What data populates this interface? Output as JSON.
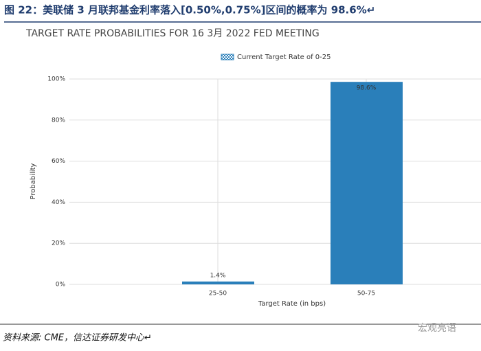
{
  "header": {
    "title": "图 22：美联储 3 月联邦基金利率落入[0.50%,0.75%]区间的概率为 98.6%↵"
  },
  "chart_data": {
    "type": "bar",
    "title": "TARGET RATE PROBABILITIES FOR 16 3月 2022 FED MEETING",
    "legend": "Current Target Rate of 0-25",
    "x_label": "Target Rate (in bps)",
    "y_label": "Probability",
    "categories": [
      "25-50",
      "50-75"
    ],
    "values": [
      1.4,
      98.6
    ],
    "value_labels": [
      "1.4%",
      "98.6%"
    ],
    "color": "#2a7fba",
    "ylim": [
      0,
      100
    ],
    "yticks": [
      {
        "value": 0,
        "label": "0%"
      },
      {
        "value": 20,
        "label": "20%"
      },
      {
        "value": 40,
        "label": "40%"
      },
      {
        "value": 60,
        "label": "60%"
      },
      {
        "value": 80,
        "label": "80%"
      },
      {
        "value": 100,
        "label": "100%"
      }
    ],
    "grid": true
  },
  "footer": {
    "source": "资料来源: CME，信达证券研发中心↵",
    "watermark": "宏观亮语"
  }
}
